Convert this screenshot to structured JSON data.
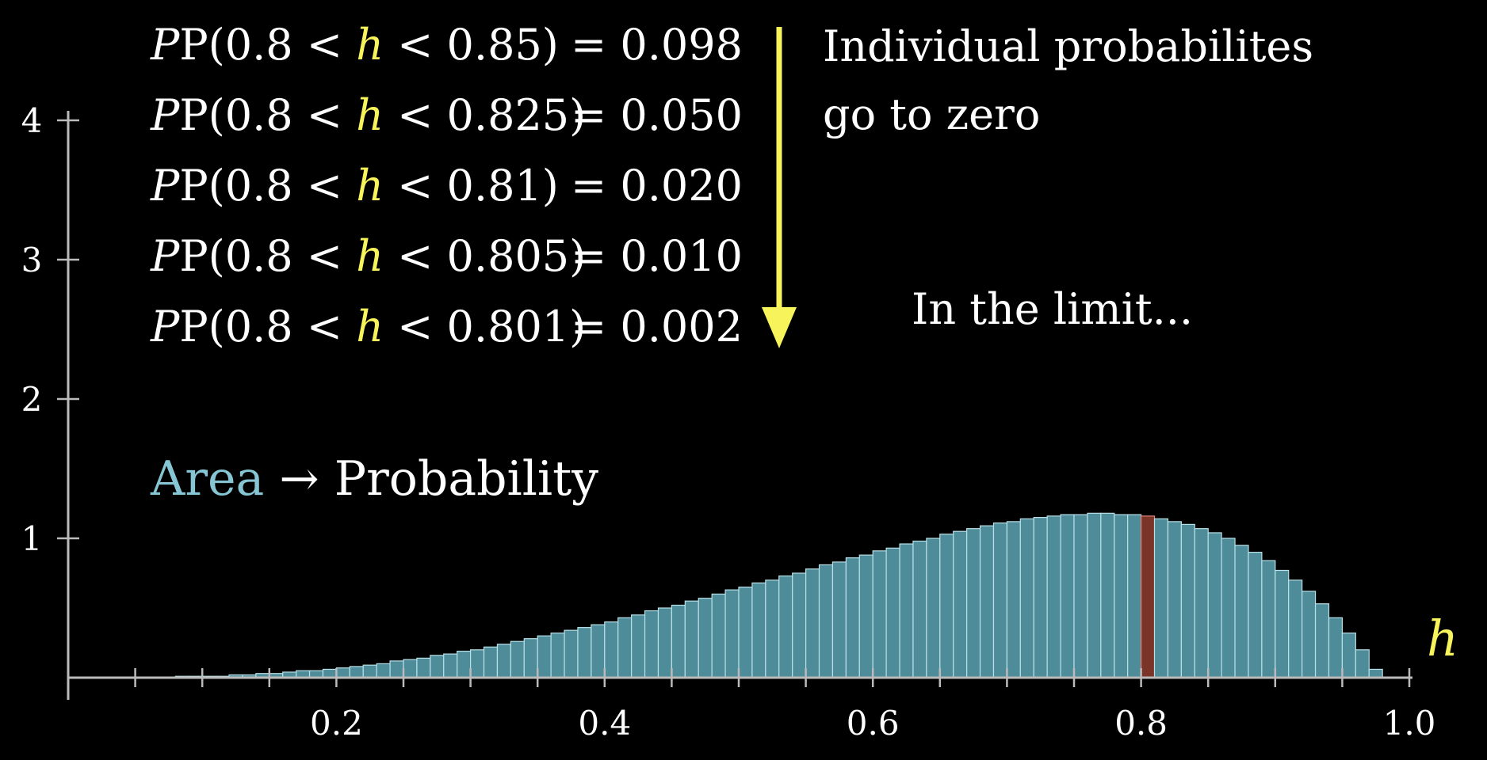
{
  "equations": [
    {
      "left": "P(0.8 < ",
      "var": "h",
      "right": " < 0.85)",
      "value": "= 0.098"
    },
    {
      "left": "P(0.8 < ",
      "var": "h",
      "right": " < 0.825)",
      "value": "= 0.050"
    },
    {
      "left": "P(0.8 < ",
      "var": "h",
      "right": " < 0.81)",
      "value": "= 0.020"
    },
    {
      "left": "P(0.8 < ",
      "var": "h",
      "right": " < 0.805)",
      "value": "= 0.010"
    },
    {
      "left": "P(0.8 < ",
      "var": "h",
      "right": " < 0.801)",
      "value": "= 0.002"
    }
  ],
  "captions": {
    "individual_line1": "Individual probabilites",
    "individual_line2": "go to zero",
    "limit": "In the limit...",
    "area_word": "Area",
    "arrow": "→",
    "probability_word": "Probability",
    "h_axis_label": "h"
  },
  "colors": {
    "bar_fill": "#4f8c99",
    "bar_edge": "#b8e0e8",
    "highlight_fill": "#7a3428",
    "highlight_edge": "#e0857a",
    "axis": "#bbbbbb",
    "yellow": "#f7f35a",
    "area_text": "#86c6d4"
  },
  "chart_data": {
    "type": "bar",
    "xlim": [
      0,
      1.0
    ],
    "ylim": [
      0,
      4
    ],
    "x_ticks": [
      0.2,
      0.4,
      0.6,
      0.8,
      1.0
    ],
    "x_tick_labels": [
      "0.2",
      "0.4",
      "0.6",
      "0.8",
      "1.0"
    ],
    "y_ticks": [
      1,
      2,
      3,
      4
    ],
    "y_tick_labels": [
      "1",
      "2",
      "3",
      "4"
    ],
    "bin_width": 0.01,
    "highlight_bin": [
      0.8,
      0.81
    ],
    "x": [
      0.005,
      0.015,
      0.025,
      0.035,
      0.045,
      0.055,
      0.065,
      0.075,
      0.085,
      0.095,
      0.105,
      0.115,
      0.125,
      0.135,
      0.145,
      0.155,
      0.165,
      0.175,
      0.185,
      0.195,
      0.205,
      0.215,
      0.225,
      0.235,
      0.245,
      0.255,
      0.265,
      0.275,
      0.285,
      0.295,
      0.305,
      0.315,
      0.325,
      0.335,
      0.345,
      0.355,
      0.365,
      0.375,
      0.385,
      0.395,
      0.405,
      0.415,
      0.425,
      0.435,
      0.445,
      0.455,
      0.465,
      0.475,
      0.485,
      0.495,
      0.505,
      0.515,
      0.525,
      0.535,
      0.545,
      0.555,
      0.565,
      0.575,
      0.585,
      0.595,
      0.605,
      0.615,
      0.625,
      0.635,
      0.645,
      0.655,
      0.665,
      0.675,
      0.685,
      0.695,
      0.705,
      0.715,
      0.725,
      0.735,
      0.745,
      0.755,
      0.765,
      0.775,
      0.785,
      0.795,
      0.805,
      0.815,
      0.825,
      0.835,
      0.845,
      0.855,
      0.865,
      0.875,
      0.885,
      0.895,
      0.905,
      0.915,
      0.925,
      0.935,
      0.945,
      0.955,
      0.965,
      0.975,
      0.985,
      0.995
    ],
    "values": [
      0.0,
      0.0,
      0.0,
      0.0,
      0.0,
      0.0,
      0.0,
      0.0,
      0.01,
      0.01,
      0.01,
      0.01,
      0.02,
      0.02,
      0.03,
      0.03,
      0.04,
      0.05,
      0.05,
      0.06,
      0.07,
      0.08,
      0.09,
      0.1,
      0.12,
      0.13,
      0.14,
      0.16,
      0.17,
      0.19,
      0.2,
      0.22,
      0.24,
      0.26,
      0.28,
      0.3,
      0.32,
      0.34,
      0.36,
      0.38,
      0.4,
      0.43,
      0.45,
      0.48,
      0.5,
      0.52,
      0.55,
      0.57,
      0.6,
      0.63,
      0.65,
      0.68,
      0.7,
      0.73,
      0.75,
      0.78,
      0.81,
      0.83,
      0.86,
      0.88,
      0.91,
      0.93,
      0.96,
      0.98,
      1.0,
      1.03,
      1.05,
      1.07,
      1.09,
      1.11,
      1.12,
      1.14,
      1.15,
      1.16,
      1.17,
      1.17,
      1.18,
      1.18,
      1.17,
      1.17,
      1.16,
      1.14,
      1.12,
      1.1,
      1.07,
      1.04,
      1.0,
      0.95,
      0.9,
      0.84,
      0.77,
      0.7,
      0.62,
      0.53,
      0.43,
      0.32,
      0.2,
      0.06,
      0.0,
      0.0
    ]
  }
}
